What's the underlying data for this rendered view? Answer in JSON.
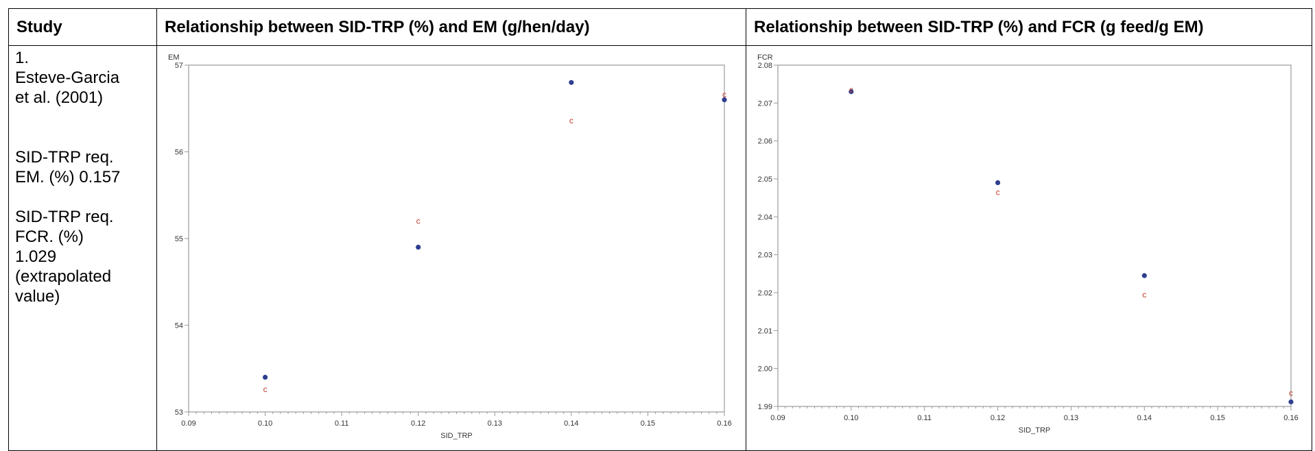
{
  "table": {
    "header_study": "Study",
    "header_em": "Relationship between SID-TRP (%) and EM (g/hen/day)",
    "header_fcr": "Relationship between SID-TRP (%) and FCR (g feed/g EM)"
  },
  "study": {
    "lines_a": [
      "1.",
      "Esteve-Garcia",
      "et al. (2001)"
    ],
    "lines_b": [
      "SID-TRP req.",
      "EM. (%) 0.157"
    ],
    "lines_c": [
      "SID-TRP req.",
      "FCR. (%)",
      "1.029",
      "(extrapolated",
      "value)"
    ]
  },
  "chart_data": [
    {
      "type": "scatter",
      "xlabel": "SID_TRP",
      "ylabel": "EM",
      "xlim": [
        0.09,
        0.16
      ],
      "ylim": [
        53,
        57
      ],
      "xticks": [
        "0.09",
        "0.10",
        "0.11",
        "0.12",
        "0.13",
        "0.14",
        "0.15",
        "0.16"
      ],
      "yticks": [
        "53",
        "54",
        "55",
        "56",
        "57"
      ],
      "xtick_values": [
        0.09,
        0.1,
        0.11,
        0.12,
        0.13,
        0.14,
        0.15,
        0.16
      ],
      "ytick_values": [
        53,
        54,
        55,
        56,
        57
      ],
      "predicted_marker": "c",
      "observed": [
        {
          "x": 0.1,
          "y": 53.4
        },
        {
          "x": 0.12,
          "y": 54.9
        },
        {
          "x": 0.14,
          "y": 56.8
        },
        {
          "x": 0.16,
          "y": 56.6
        }
      ],
      "predicted": [
        {
          "x": 0.1,
          "y": 53.26
        },
        {
          "x": 0.12,
          "y": 55.2
        },
        {
          "x": 0.14,
          "y": 56.36
        },
        {
          "x": 0.16,
          "y": 56.66
        }
      ],
      "colors": {
        "observed": "#2f3f8f",
        "predicted": "#c0392b",
        "axis": "#9a9a9a"
      }
    },
    {
      "type": "scatter",
      "xlabel": "SID_TRP",
      "ylabel": "FCR",
      "xlim": [
        0.09,
        0.16
      ],
      "ylim": [
        1.99,
        2.08
      ],
      "xticks": [
        "0.09",
        "0.10",
        "0.11",
        "0.12",
        "0.13",
        "0.14",
        "0.15",
        "0.16"
      ],
      "yticks": [
        "1.99",
        "2.00",
        "2.01",
        "2.02",
        "2.03",
        "2.04",
        "2.05",
        "2.06",
        "2.07",
        "2.08"
      ],
      "xtick_values": [
        0.09,
        0.1,
        0.11,
        0.12,
        0.13,
        0.14,
        0.15,
        0.16
      ],
      "ytick_values": [
        1.99,
        2.0,
        2.01,
        2.02,
        2.03,
        2.04,
        2.05,
        2.06,
        2.07,
        2.08
      ],
      "predicted_marker": "c",
      "observed": [
        {
          "x": 0.1,
          "y": 2.073
        },
        {
          "x": 0.12,
          "y": 2.049
        },
        {
          "x": 0.14,
          "y": 2.0245
        },
        {
          "x": 0.16,
          "y": 1.9912
        }
      ],
      "predicted": [
        {
          "x": 0.1,
          "y": 2.0735
        },
        {
          "x": 0.12,
          "y": 2.0465
        },
        {
          "x": 0.14,
          "y": 2.0195
        },
        {
          "x": 0.16,
          "y": 1.9935
        }
      ],
      "colors": {
        "observed": "#2f3f8f",
        "predicted": "#c0392b",
        "axis": "#9a9a9a"
      }
    }
  ]
}
